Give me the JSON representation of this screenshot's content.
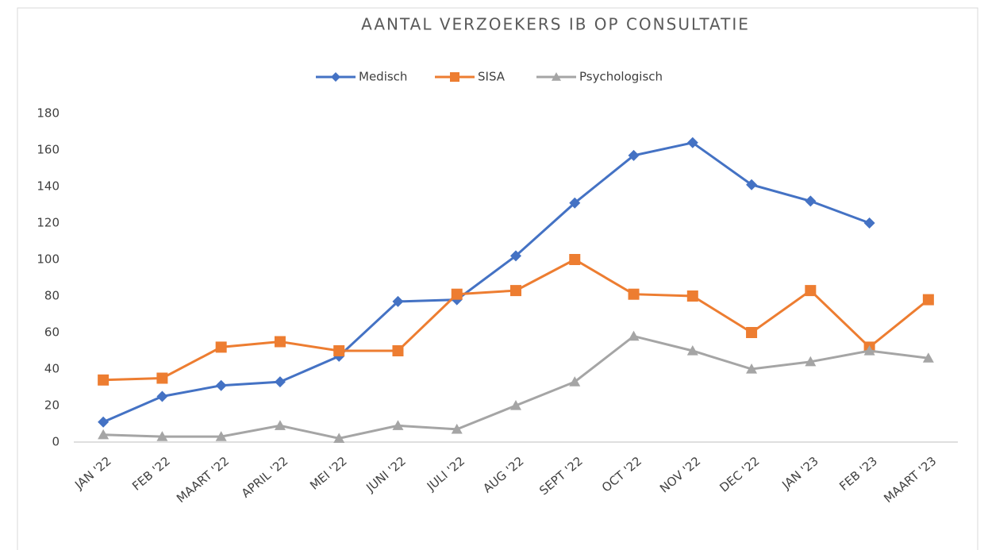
{
  "chart_data": {
    "type": "line",
    "title": "AANTAL VERZOEKERS IB OP CONSULTATIE",
    "categories": [
      "JAN '22",
      "FEB '22",
      "MAART '22",
      "APRIL '22",
      "MEI '22",
      "JUNI '22",
      "JULI '22",
      "AUG '22",
      "SEPT '22",
      "OCT '22",
      "NOV '22",
      "DEC '22",
      "JAN '23",
      "FEB '23",
      "MAART '23"
    ],
    "series": [
      {
        "name": "Medisch",
        "color": "#4472c4",
        "marker": "diamond",
        "values": [
          11,
          25,
          31,
          33,
          47,
          77,
          78,
          102,
          131,
          157,
          164,
          141,
          132,
          120,
          null
        ]
      },
      {
        "name": "SISA",
        "color": "#ed7d31",
        "marker": "square",
        "values": [
          34,
          35,
          52,
          55,
          50,
          50,
          81,
          83,
          100,
          81,
          80,
          60,
          83,
          52,
          78
        ]
      },
      {
        "name": "Psychologisch",
        "color": "#a5a5a5",
        "marker": "triangle",
        "values": [
          4,
          3,
          3,
          9,
          2,
          9,
          7,
          20,
          33,
          58,
          50,
          40,
          44,
          50,
          46
        ]
      }
    ],
    "ylim": [
      0,
      180
    ],
    "yticks": [
      0,
      20,
      40,
      60,
      80,
      100,
      120,
      140,
      160,
      180
    ],
    "grid": false,
    "legend": "top"
  }
}
